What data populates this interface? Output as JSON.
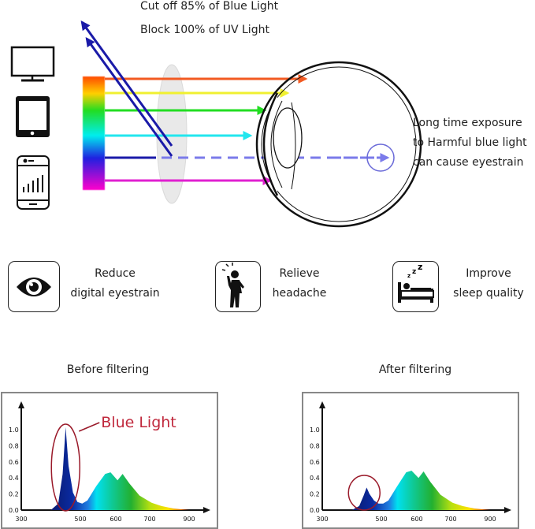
{
  "header": {
    "line1": "Cut off 85% of Blue Light",
    "line2": "Block 100% of UV Light"
  },
  "devices": [
    "monitor-icon",
    "tablet-icon",
    "smartphone-icon"
  ],
  "eye_note": {
    "line1": "Long time exposure",
    "line2": "to Harmful blue light",
    "line3": "can cause eyestrain"
  },
  "benefits": [
    {
      "icon": "eye-icon",
      "line1": "Reduce",
      "line2": "digital eyestrain"
    },
    {
      "icon": "headache-person-icon",
      "line1": "Relieve",
      "line2": "headache"
    },
    {
      "icon": "sleeping-bed-icon",
      "line1": "Improve",
      "line2": "sleep quality"
    }
  ],
  "colors": {
    "blue_light_label": "#c0283c",
    "ray_blue": "#1a1aa8",
    "dashed_ray": "#7b7bea"
  },
  "chart_data": [
    {
      "type": "area",
      "title": "Before filtering",
      "annotation": "Blue Light",
      "x_ticks": [
        300,
        500,
        600,
        700,
        900
      ],
      "y_ticks": [
        0.0,
        0.2,
        0.4,
        0.6,
        0.8,
        1.0
      ],
      "ylim": [
        0,
        1.1
      ],
      "x": [
        400,
        425,
        440,
        450,
        460,
        475,
        490,
        505,
        520,
        545,
        570,
        585,
        605,
        620,
        640,
        670,
        710,
        760,
        820,
        880,
        900
      ],
      "values": [
        0,
        0.08,
        0.45,
        1.03,
        0.55,
        0.22,
        0.1,
        0.08,
        0.12,
        0.3,
        0.45,
        0.47,
        0.37,
        0.45,
        0.33,
        0.18,
        0.09,
        0.05,
        0.02,
        0.005,
        0
      ]
    },
    {
      "type": "area",
      "title": "After filtering",
      "x_ticks": [
        300,
        500,
        600,
        700,
        900
      ],
      "y_ticks": [
        0.0,
        0.2,
        0.4,
        0.6,
        0.8,
        1.0
      ],
      "ylim": [
        0,
        1.1
      ],
      "x": [
        400,
        425,
        440,
        450,
        460,
        475,
        490,
        505,
        520,
        545,
        570,
        585,
        605,
        620,
        640,
        670,
        710,
        760,
        820,
        880,
        900
      ],
      "values": [
        0,
        0.05,
        0.18,
        0.28,
        0.2,
        0.12,
        0.08,
        0.08,
        0.12,
        0.3,
        0.47,
        0.49,
        0.4,
        0.48,
        0.35,
        0.19,
        0.09,
        0.05,
        0.02,
        0.005,
        0
      ]
    }
  ]
}
